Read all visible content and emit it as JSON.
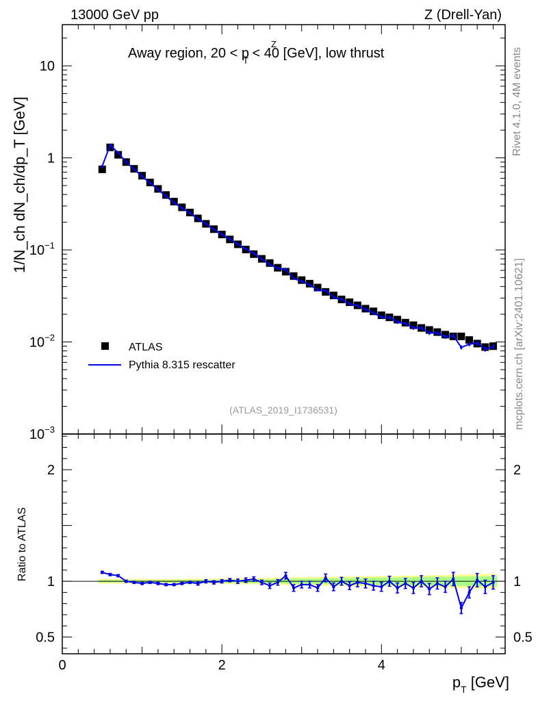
{
  "header": {
    "energy_label": "13000 GeV pp",
    "process_label": "Z (Drell-Yan)",
    "plot_title": "Away region, 20 < p",
    "plot_title_sup": "Z",
    "plot_title_sub": "T",
    "plot_title_tail": " < 40 [GeV], low thrust"
  },
  "side": {
    "rivet_label": "Rivet 4.1.0,  4M events",
    "mcplots_label": "mcplots.cern.ch [arXiv:2401.10621]"
  },
  "analysis_id": "(ATLAS_2019_I1736531)",
  "legend": {
    "data_label": "ATLAS",
    "mc_label": "Pythia 8.315 rescatter"
  },
  "colors": {
    "data": "#000000",
    "mc": "#0000ee",
    "band_inner": "#aaff88",
    "band_outer": "#ffff88"
  },
  "chart_data": {
    "type": "scatter",
    "main": {
      "ylabel": "1/N_ch dN_ch/dp_T [GeV]",
      "yscale": "log",
      "ylim": [
        0.001,
        28
      ],
      "yticks": [
        {
          "v": 10,
          "label": "10"
        },
        {
          "v": 1,
          "label": "1"
        },
        {
          "v": 0.1,
          "label": "10",
          "sup": "−1"
        },
        {
          "v": 0.01,
          "label": "10",
          "sup": "−2"
        },
        {
          "v": 0.001,
          "label": "10",
          "sup": "−3"
        }
      ]
    },
    "ratio": {
      "ylabel": "Ratio to ATLAS",
      "ylim": [
        0.35,
        2.32
      ],
      "yticks": [
        {
          "v": 2,
          "label": "2"
        },
        {
          "v": 1,
          "label": "1"
        },
        {
          "v": 0.5,
          "label": "0.5"
        }
      ]
    },
    "x": {
      "label": "p",
      "label_sub": "T",
      "label_tail": " [GeV]",
      "xlim": [
        0,
        5.55
      ],
      "xticks": [
        {
          "v": 0,
          "label": "0"
        },
        {
          "v": 2,
          "label": "2"
        },
        {
          "v": 4,
          "label": "4"
        }
      ]
    },
    "series": [
      {
        "name": "ATLAS",
        "x": [
          0.5,
          0.6,
          0.7,
          0.8,
          0.9,
          1.0,
          1.1,
          1.2,
          1.3,
          1.4,
          1.5,
          1.6,
          1.7,
          1.8,
          1.9,
          2.0,
          2.1,
          2.2,
          2.3,
          2.4,
          2.5,
          2.6,
          2.7,
          2.8,
          2.9,
          3.0,
          3.1,
          3.2,
          3.3,
          3.4,
          3.5,
          3.6,
          3.7,
          3.8,
          3.9,
          4.0,
          4.1,
          4.2,
          4.3,
          4.4,
          4.5,
          4.6,
          4.7,
          4.8,
          4.9,
          5.0,
          5.1,
          5.2,
          5.3,
          5.4
        ],
        "values": [
          0.75,
          1.3,
          1.08,
          0.9,
          0.76,
          0.64,
          0.54,
          0.46,
          0.395,
          0.335,
          0.29,
          0.255,
          0.22,
          0.192,
          0.168,
          0.147,
          0.13,
          0.115,
          0.101,
          0.09,
          0.08,
          0.072,
          0.064,
          0.058,
          0.052,
          0.047,
          0.043,
          0.039,
          0.035,
          0.032,
          0.029,
          0.027,
          0.025,
          0.023,
          0.0215,
          0.0195,
          0.0185,
          0.0175,
          0.0162,
          0.0152,
          0.0142,
          0.0135,
          0.0128,
          0.012,
          0.0115,
          0.0115,
          0.0105,
          0.0096,
          0.0088,
          0.009
        ]
      },
      {
        "name": "Pythia 8.315 rescatter",
        "ratio": [
          1.08,
          1.06,
          1.05,
          1.0,
          0.99,
          0.98,
          0.99,
          0.98,
          0.97,
          0.97,
          0.98,
          0.99,
          0.98,
          1.0,
          0.99,
          1.0,
          1.01,
          1.0,
          1.01,
          1.02,
          0.99,
          0.96,
          0.99,
          1.05,
          0.94,
          0.97,
          0.97,
          0.94,
          1.03,
          0.95,
          1.0,
          0.96,
          0.99,
          0.98,
          0.96,
          0.95,
          1.0,
          0.94,
          0.98,
          0.94,
          1.0,
          0.93,
          0.98,
          0.95,
          1.02,
          0.76,
          0.9,
          1.01,
          0.95,
          0.99
        ],
        "ratio_err": [
          0.01,
          0.01,
          0.01,
          0.01,
          0.01,
          0.01,
          0.01,
          0.01,
          0.01,
          0.01,
          0.01,
          0.01,
          0.015,
          0.015,
          0.015,
          0.015,
          0.015,
          0.02,
          0.02,
          0.02,
          0.02,
          0.025,
          0.025,
          0.03,
          0.03,
          0.03,
          0.03,
          0.03,
          0.035,
          0.035,
          0.035,
          0.035,
          0.04,
          0.04,
          0.04,
          0.04,
          0.045,
          0.045,
          0.045,
          0.05,
          0.05,
          0.05,
          0.05,
          0.05,
          0.06,
          0.05,
          0.05,
          0.06,
          0.06,
          0.06
        ]
      }
    ],
    "band": {
      "inner": [
        0.01,
        0.01,
        0.01,
        0.01,
        0.01,
        0.01,
        0.01,
        0.01,
        0.01,
        0.01,
        0.012,
        0.012,
        0.012,
        0.012,
        0.012,
        0.014,
        0.014,
        0.014,
        0.016,
        0.016,
        0.018,
        0.018,
        0.02,
        0.02,
        0.022,
        0.022,
        0.024,
        0.024,
        0.026,
        0.026,
        0.028,
        0.028,
        0.03,
        0.03,
        0.032,
        0.032,
        0.034,
        0.034,
        0.036,
        0.036,
        0.038,
        0.038,
        0.04,
        0.04,
        0.04,
        0.042,
        0.042,
        0.044,
        0.044,
        0.045
      ],
      "outer": [
        0.02,
        0.02,
        0.02,
        0.02,
        0.02,
        0.02,
        0.02,
        0.02,
        0.02,
        0.02,
        0.022,
        0.022,
        0.022,
        0.022,
        0.022,
        0.024,
        0.024,
        0.024,
        0.026,
        0.026,
        0.03,
        0.03,
        0.032,
        0.032,
        0.035,
        0.035,
        0.038,
        0.038,
        0.04,
        0.04,
        0.042,
        0.042,
        0.044,
        0.044,
        0.046,
        0.046,
        0.048,
        0.048,
        0.05,
        0.05,
        0.052,
        0.052,
        0.055,
        0.055,
        0.06,
        0.06,
        0.06,
        0.065,
        0.065,
        0.065
      ]
    }
  }
}
